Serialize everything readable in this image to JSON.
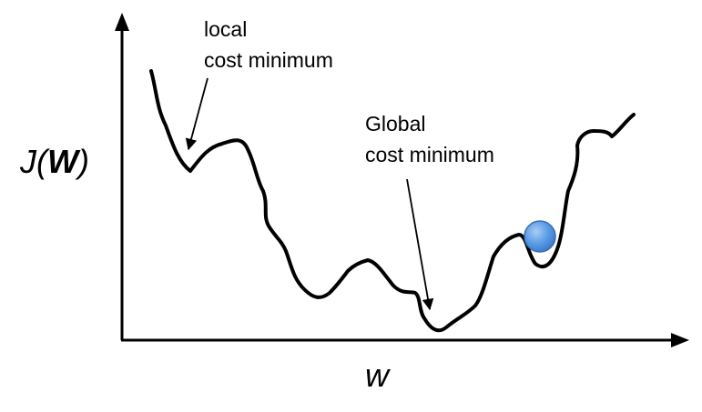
{
  "annotations": {
    "local_line1": "local",
    "local_line2": "cost minimum",
    "global_line1": "Global",
    "global_line2": "cost minimum"
  },
  "axes": {
    "y_label_prefix": "J(",
    "y_label_var": "W",
    "y_label_suffix": ")",
    "x_label": "w"
  },
  "colors": {
    "curve": "#000000",
    "ball": "#4f8fdb",
    "ball_stroke": "#3b6fae"
  }
}
